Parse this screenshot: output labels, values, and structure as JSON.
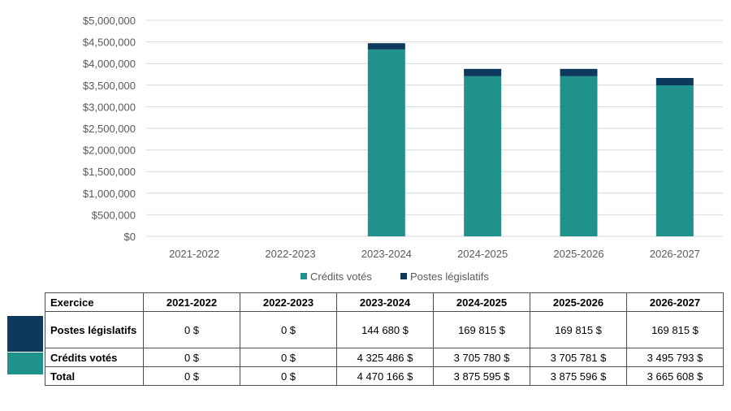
{
  "colors": {
    "votes": "#21918c",
    "legislatifs": "#0d3a5c",
    "gridline": "#d9d9d9",
    "axis_text": "#595959"
  },
  "chart_data": {
    "type": "bar",
    "stacked": true,
    "categories": [
      "2021-2022",
      "2022-2023",
      "2023-2024",
      "2024-2025",
      "2025-2026",
      "2026-2027"
    ],
    "series": [
      {
        "name": "Crédits votés",
        "values": [
          0,
          0,
          4325486,
          3705780,
          3705781,
          3495793
        ]
      },
      {
        "name": "Postes législatifs",
        "values": [
          0,
          0,
          144680,
          169815,
          169815,
          169815
        ]
      }
    ],
    "ylim": [
      0,
      5000000
    ],
    "yticks": [
      "$5,000,000",
      "$4,500,000",
      "$4,000,000",
      "$3,500,000",
      "$3,000,000",
      "$2,500,000",
      "$2,000,000",
      "$1,500,000",
      "$1,000,000",
      "$500,000",
      "$0"
    ],
    "grid": true,
    "legend": "bottom"
  },
  "table": {
    "header": [
      "Exercice",
      "2021-2022",
      "2022-2023",
      "2023-2024",
      "2024-2025",
      "2025-2026",
      "2026-2027"
    ],
    "rows": [
      {
        "label": "Postes législatifs",
        "values": [
          "0 $",
          "0 $",
          "144 680 $",
          "169 815 $",
          "169 815 $",
          "169 815 $"
        ]
      },
      {
        "label": "Crédits votés",
        "values": [
          "0 $",
          "0 $",
          "4 325 486 $",
          "3 705 780 $",
          "3 705 781 $",
          "3 495 793 $"
        ]
      },
      {
        "label": "Total",
        "values": [
          "0 $",
          "0 $",
          "4 470 166 $",
          "3 875 595 $",
          "3 875 596 $",
          "3 665 608 $"
        ]
      }
    ]
  }
}
